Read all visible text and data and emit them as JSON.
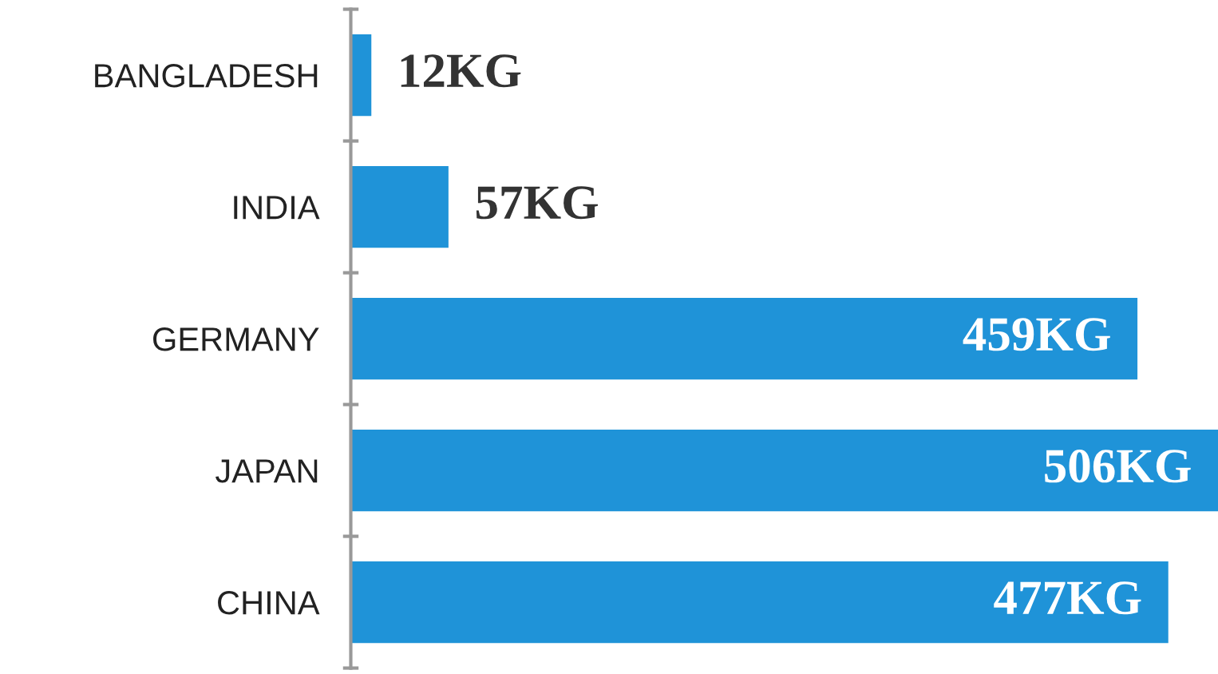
{
  "chart_data": {
    "type": "bar",
    "orientation": "horizontal",
    "categories": [
      "BANGLADESH",
      "INDIA",
      "GERMANY",
      "JAPAN",
      "CHINA"
    ],
    "values": [
      12,
      57,
      459,
      506,
      477
    ],
    "value_labels": [
      "12KG",
      "57KG",
      "459KG",
      "506KG",
      "477KG"
    ],
    "color": "#1f93d8",
    "grid": false,
    "legend": false
  }
}
